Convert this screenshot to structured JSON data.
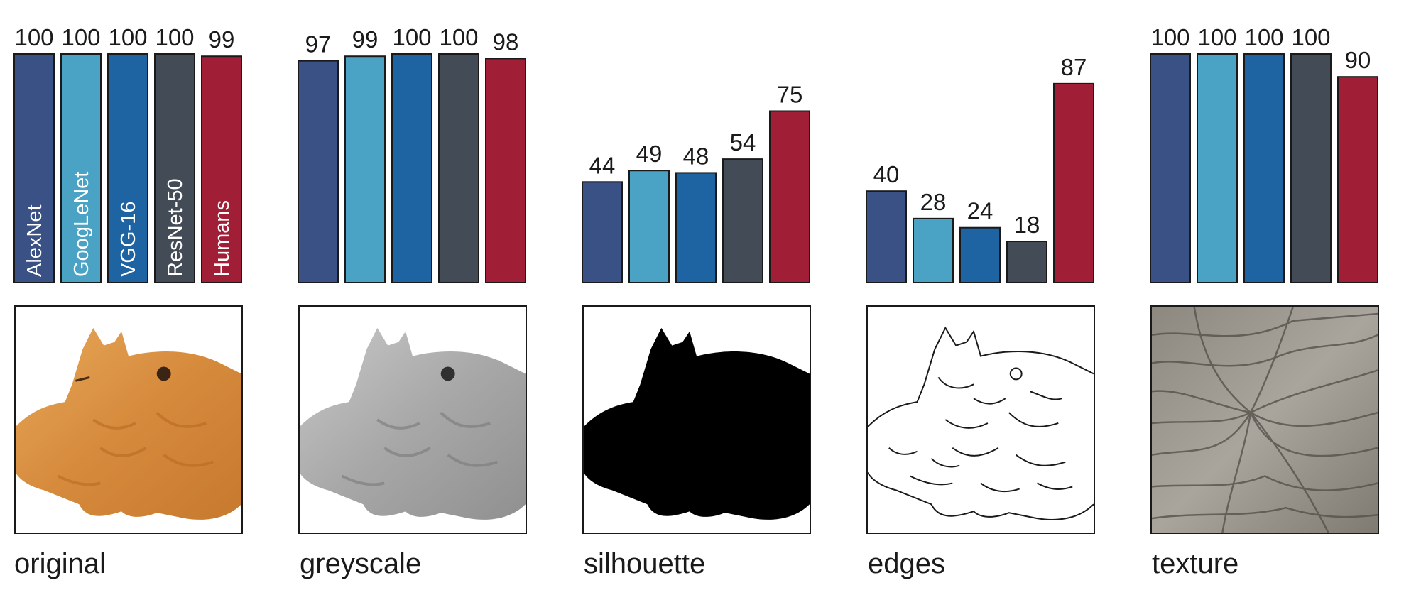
{
  "colors": {
    "AlexNet": "#3a5186",
    "GoogLeNet": "#4aa3c4",
    "VGG-16": "#1f64a2",
    "ResNet-50": "#434b57",
    "Humans": "#a01f36",
    "outline": "#1a1a1a"
  },
  "chart_data": [
    {
      "type": "bar",
      "panel": "original",
      "categories": [
        "AlexNet",
        "GoogLeNet",
        "VGG-16",
        "ResNet-50",
        "Humans"
      ],
      "values": [
        100,
        100,
        100,
        100,
        99
      ],
      "show_category_labels": true,
      "ylim": [
        0,
        100
      ]
    },
    {
      "type": "bar",
      "panel": "greyscale",
      "categories": [
        "AlexNet",
        "GoogLeNet",
        "VGG-16",
        "ResNet-50",
        "Humans"
      ],
      "values": [
        97,
        99,
        100,
        100,
        98
      ],
      "show_category_labels": false,
      "ylim": [
        0,
        100
      ]
    },
    {
      "type": "bar",
      "panel": "silhouette",
      "categories": [
        "AlexNet",
        "GoogLeNet",
        "VGG-16",
        "ResNet-50",
        "Humans"
      ],
      "values": [
        44,
        49,
        48,
        54,
        75
      ],
      "show_category_labels": false,
      "ylim": [
        0,
        100
      ]
    },
    {
      "type": "bar",
      "panel": "edges",
      "categories": [
        "AlexNet",
        "GoogLeNet",
        "VGG-16",
        "ResNet-50",
        "Humans"
      ],
      "values": [
        40,
        28,
        24,
        18,
        87
      ],
      "show_category_labels": false,
      "ylim": [
        0,
        100
      ]
    },
    {
      "type": "bar",
      "panel": "texture",
      "categories": [
        "AlexNet",
        "GoogLeNet",
        "VGG-16",
        "ResNet-50",
        "Humans"
      ],
      "values": [
        100,
        100,
        100,
        100,
        90
      ],
      "show_category_labels": false,
      "ylim": [
        0,
        100
      ]
    }
  ],
  "panels": [
    {
      "label": "original",
      "image": "cat-photo-icon"
    },
    {
      "label": "greyscale",
      "image": "greyscale-cat-icon"
    },
    {
      "label": "silhouette",
      "image": "cat-silhouette-icon"
    },
    {
      "label": "edges",
      "image": "cat-edges-icon"
    },
    {
      "label": "texture",
      "image": "elephant-skin-texture-icon"
    }
  ]
}
